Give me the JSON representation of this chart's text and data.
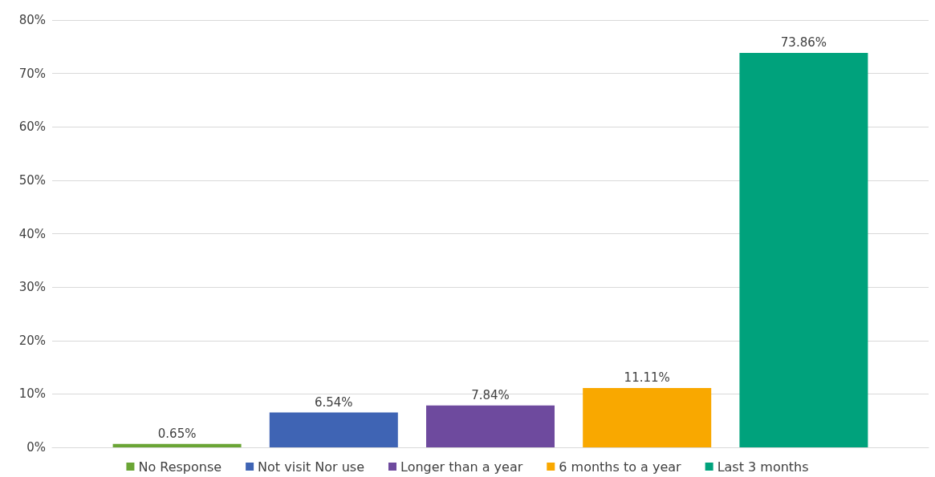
{
  "chart_data": {
    "type": "bar",
    "categories": [
      null
    ],
    "series": [
      {
        "name": "No Response",
        "color": "#6aa535",
        "values": [
          0.65
        ],
        "value_labels": [
          "0.65%"
        ]
      },
      {
        "name": "Not visit Nor use",
        "color": "#3f64b4",
        "values": [
          6.54
        ],
        "value_labels": [
          "6.54%"
        ]
      },
      {
        "name": "Longer than a year",
        "color": "#6e4a9e",
        "values": [
          7.84
        ],
        "value_labels": [
          "7.84%"
        ]
      },
      {
        "name": "6 months to a year",
        "color": "#f9a800",
        "values": [
          11.11
        ],
        "value_labels": [
          "11.11%"
        ]
      },
      {
        "name": "Last 3 months",
        "color": "#00a27c",
        "values": [
          73.86
        ],
        "value_labels": [
          "73.86%"
        ]
      }
    ],
    "ylim": [
      0,
      80
    ],
    "yticks": [
      {
        "value": 0,
        "label": "0%"
      },
      {
        "value": 10,
        "label": "10%"
      },
      {
        "value": 20,
        "label": "20%"
      },
      {
        "value": 30,
        "label": "30%"
      },
      {
        "value": 40,
        "label": "40%"
      },
      {
        "value": 50,
        "label": "50%"
      },
      {
        "value": 60,
        "label": "60%"
      },
      {
        "value": 70,
        "label": "70%"
      },
      {
        "value": 80,
        "label": "80%"
      }
    ],
    "grid": "y",
    "legend": "bottom"
  }
}
